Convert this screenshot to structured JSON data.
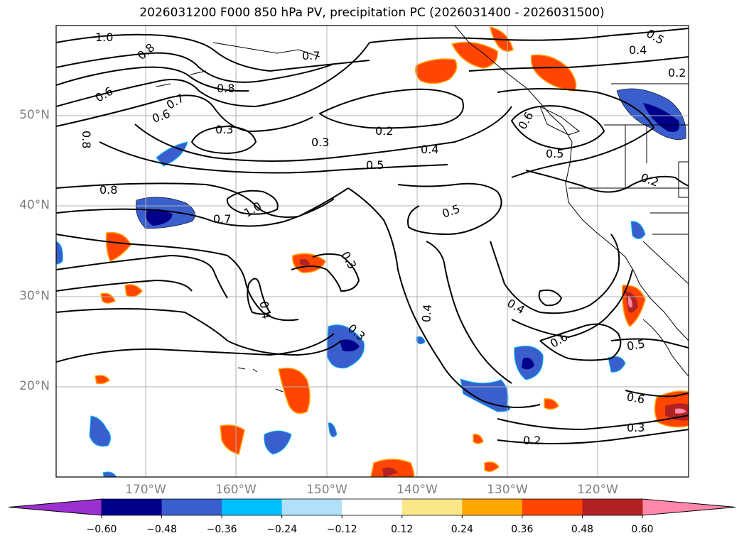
{
  "title": "2026031200 F000 850 hPa PV, precipitation PC (2026031400 - 2026031500)",
  "lat_labels": [
    "50°N",
    "40°N",
    "30°N",
    "20°N"
  ],
  "lon_labels": [
    "170°W",
    "160°W",
    "150°W",
    "140°W",
    "130°W",
    "120°W"
  ],
  "contour_labels": [
    "1.0",
    "0.8",
    "0.7",
    "0.4",
    "0.5",
    "0.2",
    "0.6",
    "0.7",
    "0.8",
    "0.6",
    "0.8",
    "0.3",
    "0.2",
    "0.3",
    "0.4",
    "0.5",
    "0.6",
    "0.5",
    "0.8",
    "1.0",
    "0.7",
    "0.5",
    "0.2",
    "0.3",
    "0.4",
    "0.4",
    "0.4",
    "0.3",
    "0.6",
    "0.5",
    "0.6",
    "0.3",
    "0.2"
  ],
  "colorbar": {
    "ticks": [
      "−0.60",
      "−0.48",
      "−0.36",
      "−0.24",
      "−0.12",
      "0.12",
      "0.24",
      "0.36",
      "0.48",
      "0.60"
    ],
    "colors": [
      "#9b30d0",
      "#00008b",
      "#3a5fcd",
      "#00bfff",
      "#b0e0fa",
      "#ffffff",
      "#fce68a",
      "#ffa500",
      "#ff4500",
      "#b22222",
      "#ff88aa"
    ]
  }
}
